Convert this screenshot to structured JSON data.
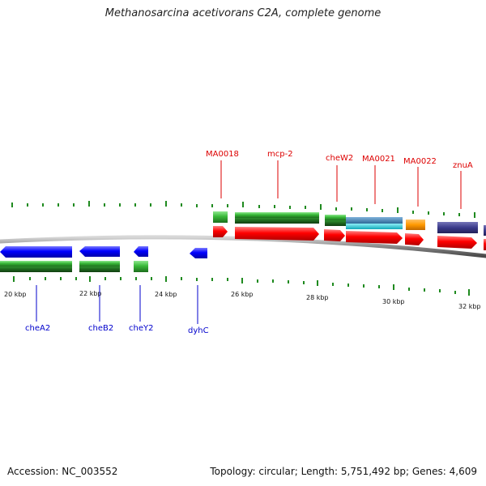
{
  "title": "Methanosarcina acetivorans C2A, complete genome",
  "footer": {
    "accession": "Accession: NC_003552",
    "summary": "Topology: circular; Length: 5,751,492 bp; Genes: 4,609"
  },
  "colors": {
    "backbone": "#808080",
    "tick": "#1f8a1f",
    "forward_label": "#dd0000",
    "reverse_label": "#0000cc",
    "cds_forward": "#ff0000",
    "cds_reverse": "#0000ff",
    "gene": "#39b939",
    "orange": "#ff9900",
    "navy": "#3b3b8a",
    "steelblue": "#3f7fb0",
    "cyan": "#20c8d8"
  },
  "axis": {
    "labels": [
      "20 kbp",
      "22 kbp",
      "24 kbp",
      "26 kbp",
      "28 kbp",
      "30 kbp",
      "32 kbp"
    ]
  },
  "genes": {
    "forward": [
      {
        "name": "MA0018"
      },
      {
        "name": "mcp-2"
      },
      {
        "name": "cheW2"
      },
      {
        "name": "MA0021"
      },
      {
        "name": "MA0022"
      },
      {
        "name": "znuA"
      }
    ],
    "reverse": [
      {
        "name": "cheA2"
      },
      {
        "name": "cheB2"
      },
      {
        "name": "cheY2"
      },
      {
        "name": "dyhC"
      }
    ]
  }
}
